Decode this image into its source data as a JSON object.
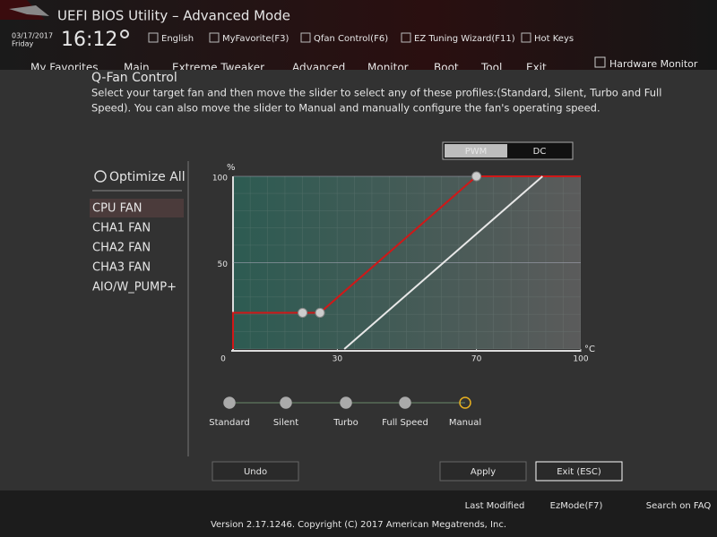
{
  "header": {
    "title": "UEFI BIOS Utility – Advanced Mode",
    "date": "03/17/2017",
    "day": "Friday",
    "time": "16:12",
    "toolbar": [
      "English",
      "MyFavorite(F3)",
      "Qfan Control(F6)",
      "EZ Tuning Wizard(F11)",
      "Hot Keys"
    ]
  },
  "menu": {
    "tabs": [
      "My Favorites",
      "Main",
      "Extreme Tweaker",
      "Advanced",
      "Monitor",
      "Boot",
      "Tool",
      "Exit"
    ],
    "active": 4,
    "side": "Hardware Monitor"
  },
  "dialog": {
    "title": "Q-Fan Control",
    "description": [
      "Select your target fan and then move the slider to select any of these profiles:(Standard, Silent, Turbo and Full",
      "Speed). You can also move the slider to Manual and manually configure the fan's operating speed."
    ],
    "modes": [
      "PWM",
      "DC"
    ],
    "active_mode": 0,
    "optimize": "Optimize All",
    "fans": [
      "CPU FAN",
      "CHA1 FAN",
      "CHA2 FAN",
      "CHA3 FAN",
      "AIO/W_PUMP+"
    ],
    "active_fan": 0,
    "profiles": [
      "Standard",
      "Silent",
      "Turbo",
      "Full Speed",
      "Manual"
    ],
    "active_profile": 4,
    "buttons": [
      "Undo",
      "Apply",
      "Exit (ESC)"
    ]
  },
  "chart_data": {
    "type": "line",
    "y_unit": "%",
    "x_unit": "°C",
    "xlim": [
      0,
      100
    ],
    "ylim": [
      0,
      100
    ],
    "xticks": [
      0,
      30,
      70,
      100
    ],
    "yticks": [
      50,
      100
    ],
    "series": [
      {
        "color": "#d01818",
        "x": [
          0,
          0,
          20,
          25,
          70,
          100
        ],
        "values": [
          0,
          21,
          21,
          21,
          100,
          100
        ]
      },
      {
        "color": "#e8e8e8",
        "x": [
          32,
          89
        ],
        "values": [
          0,
          100
        ]
      }
    ]
  },
  "footer": {
    "items": [
      "Last Modified",
      "EzMode(F7)",
      "Search on FAQ"
    ],
    "version": "Version 2.17.1246. Copyright (C) 2017 American Megatrends, Inc."
  }
}
